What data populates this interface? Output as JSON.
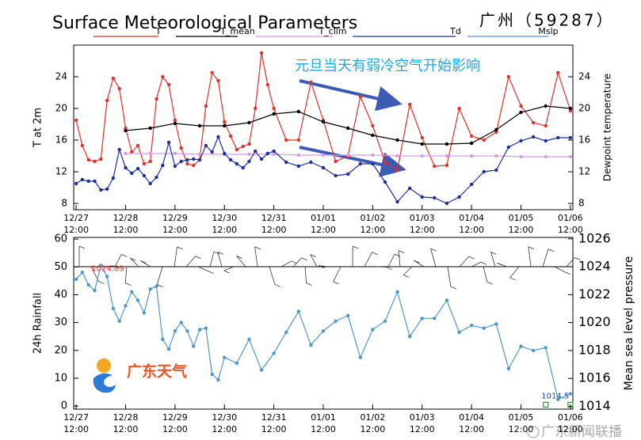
{
  "chart_data": [
    {
      "type": "line",
      "title": "Surface Meteorological Parameters",
      "subtitle": "广州（59287）",
      "ylabel": "T at 2m",
      "y2label": "Dewpoint temperature",
      "xlim": [
        -0.05,
        10.05
      ],
      "ylim": [
        7.2,
        28
      ],
      "y2lim": [
        7.2,
        28
      ],
      "yticks": [
        8,
        12,
        16,
        20,
        24
      ],
      "y2ticks": [
        8,
        12,
        16,
        20,
        24
      ],
      "xticks": [
        {
          "value": 0,
          "label": "12/27\n12:00"
        },
        {
          "value": 1,
          "label": "12/28\n12:00"
        },
        {
          "value": 2,
          "label": "12/29\n12:00"
        },
        {
          "value": 3,
          "label": "12/30\n12:00"
        },
        {
          "value": 4,
          "label": "12/31\n12:00"
        },
        {
          "value": 5,
          "label": "01/01\n12:00"
        },
        {
          "value": 6,
          "label": "01/02\n12:00"
        },
        {
          "value": 7,
          "label": "01/03\n12:00"
        },
        {
          "value": 8,
          "label": "01/04\n12:00"
        },
        {
          "value": 9,
          "label": "01/05\n12:00"
        },
        {
          "value": 10,
          "label": "01/06\n12:00"
        }
      ],
      "annotation": "元旦当天有弱冷空气开始影响",
      "series": [
        {
          "name": "T",
          "color": "#e0302a",
          "x": [
            0,
            0.125,
            0.25,
            0.375,
            0.5,
            0.625,
            0.75,
            0.875,
            1,
            1.125,
            1.25,
            1.375,
            1.5,
            1.625,
            1.75,
            1.875,
            2,
            2.125,
            2.25,
            2.375,
            2.5,
            2.625,
            2.75,
            2.875,
            3,
            3.125,
            3.25,
            3.375,
            3.5,
            3.625,
            3.75,
            3.875,
            4,
            4.25,
            4.5,
            4.75,
            5,
            5.25,
            5.5,
            5.75,
            6,
            6.25,
            6.5,
            6.75,
            7,
            7.25,
            7.5,
            7.75,
            8,
            8.25,
            8.5,
            8.75,
            9,
            9.25,
            9.5,
            9.75,
            10
          ],
          "values": [
            18.5,
            15.3,
            13.5,
            13.3,
            13.6,
            21,
            23.8,
            22.5,
            17.5,
            14.5,
            15.3,
            13,
            13.3,
            21.2,
            24,
            23,
            18.5,
            15,
            13,
            12.8,
            13.5,
            20.3,
            24.5,
            23.5,
            18.3,
            16.5,
            14.8,
            15.2,
            15.5,
            20,
            27,
            23,
            20,
            16,
            16,
            23.3,
            18.5,
            13.3,
            14,
            21.5,
            17.8,
            13.2,
            12.2,
            20.5,
            16.3,
            12.7,
            12.8,
            20,
            16.5,
            16,
            17,
            24,
            20.3,
            18.2,
            17.8,
            24.5,
            19.7
          ]
        },
        {
          "name": "T_mean",
          "color": "#000000",
          "x": [
            1,
            1.5,
            2,
            2.5,
            3,
            3.5,
            4,
            4.5,
            5,
            5.5,
            6,
            6.5,
            7,
            7.5,
            8,
            8.5,
            9,
            9.5,
            10
          ],
          "values": [
            17.2,
            17.5,
            18.1,
            17.8,
            17.8,
            18.2,
            19.3,
            19.6,
            18.3,
            17.5,
            16.6,
            16,
            15.5,
            15.5,
            15.6,
            17.3,
            19.5,
            20.3,
            20
          ]
        },
        {
          "name": "T_clim",
          "color": "#d79be0",
          "x": [
            1,
            1.5,
            2,
            2.5,
            3,
            3.5,
            4,
            4.5,
            5,
            5.5,
            6,
            6.5,
            7,
            7.5,
            8,
            8.5,
            9,
            9.5,
            10
          ],
          "values": [
            14.3,
            14.3,
            14.3,
            14.2,
            14.2,
            14.2,
            14.2,
            14.1,
            14.1,
            14.1,
            14.1,
            14,
            14,
            14,
            14,
            14,
            13.9,
            13.9,
            13.9
          ]
        },
        {
          "name": "Td",
          "color": "#1f2f9a",
          "axis": "y2",
          "x": [
            0,
            0.125,
            0.25,
            0.375,
            0.5,
            0.625,
            0.75,
            0.875,
            1,
            1.125,
            1.25,
            1.375,
            1.5,
            1.625,
            1.75,
            1.875,
            2,
            2.125,
            2.25,
            2.375,
            2.5,
            2.625,
            2.75,
            2.875,
            3,
            3.125,
            3.25,
            3.375,
            3.5,
            3.625,
            3.75,
            3.875,
            4,
            4.25,
            4.5,
            4.75,
            5,
            5.25,
            5.5,
            5.75,
            6,
            6.25,
            6.5,
            6.75,
            7,
            7.25,
            7.5,
            7.75,
            8,
            8.25,
            8.5,
            8.75,
            9,
            9.25,
            9.5,
            9.75,
            10
          ],
          "values": [
            10.5,
            11,
            10.8,
            10.8,
            9.7,
            9.8,
            11.2,
            14.8,
            12.5,
            11.8,
            12.4,
            11.5,
            10.5,
            11.3,
            12.8,
            15.7,
            12.7,
            13.3,
            13.5,
            13.6,
            13.5,
            15.3,
            14.5,
            16.4,
            14.3,
            13.5,
            13,
            12.5,
            13.3,
            14.6,
            13.6,
            14.3,
            14.6,
            13.2,
            12.7,
            13.2,
            12.5,
            11.5,
            11.7,
            13,
            13,
            10.7,
            8.2,
            9.9,
            8.8,
            8.7,
            8,
            8.8,
            10.4,
            12,
            12.2,
            15.1,
            15.9,
            16.4,
            15.9,
            16.3,
            16.3
          ]
        }
      ]
    },
    {
      "type": "line",
      "ylabel": "24h Rainfall",
      "y2label": "Mean sea level pressure",
      "xlim": [
        -0.05,
        10.05
      ],
      "ylim": [
        -1.1,
        60.6
      ],
      "y2lim": [
        1013.8,
        1026.1
      ],
      "yticks": [
        0,
        10,
        20,
        30,
        40,
        50,
        60
      ],
      "y2ticks": [
        1014,
        1016,
        1018,
        1020,
        1022,
        1024,
        1026
      ],
      "xticks": [
        {
          "value": 0,
          "label": "12/27\n12:00"
        },
        {
          "value": 1,
          "label": "12/28\n12:00"
        },
        {
          "value": 2,
          "label": "12/29\n12:00"
        },
        {
          "value": 3,
          "label": "12/30\n12:00"
        },
        {
          "value": 4,
          "label": "12/31\n12:00"
        },
        {
          "value": 5,
          "label": "01/01\n12:00"
        },
        {
          "value": 6,
          "label": "01/02\n12:00"
        },
        {
          "value": 7,
          "label": "01/03\n12:00"
        },
        {
          "value": 8,
          "label": "01/04\n12:00"
        },
        {
          "value": 9,
          "label": "01/05\n12:00"
        },
        {
          "value": 10,
          "label": "01/06\n12:00"
        }
      ],
      "series": [
        {
          "name": "Mslp",
          "color": "#4f97c9",
          "axis": "y2",
          "x": [
            0,
            0.125,
            0.25,
            0.375,
            0.5,
            0.625,
            0.75,
            0.875,
            1,
            1.125,
            1.25,
            1.375,
            1.5,
            1.625,
            1.75,
            1.875,
            2,
            2.125,
            2.25,
            2.375,
            2.5,
            2.625,
            2.75,
            2.875,
            3,
            3.25,
            3.5,
            3.75,
            4,
            4.25,
            4.5,
            4.75,
            5,
            5.25,
            5.5,
            5.75,
            6,
            6.25,
            6.5,
            6.75,
            7,
            7.25,
            7.5,
            7.75,
            8,
            8.25,
            8.5,
            8.75,
            9,
            9.25,
            9.5,
            9.75,
            10
          ],
          "values": [
            1023.1,
            1023.6,
            1022.7,
            1022.3,
            1024.09,
            1023.3,
            1021,
            1020.1,
            1021.2,
            1022.2,
            1021.6,
            1020.7,
            1022.4,
            1022.6,
            1018.8,
            1018.1,
            1019.4,
            1020,
            1019.4,
            1018.3,
            1019.5,
            1019.6,
            1016.3,
            1015.9,
            1017.5,
            1017.1,
            1018.8,
            1016.6,
            1017.8,
            1019.3,
            1020.8,
            1018.4,
            1019.4,
            1020.1,
            1020.5,
            1017.5,
            1019.5,
            1020.1,
            1022.2,
            1019,
            1020.3,
            1020.3,
            1021.6,
            1019.3,
            1019.8,
            1019.6,
            1019.9,
            1016.7,
            1018.3,
            1018,
            1018.2,
            1014.5,
            1014.9
          ],
          "max_label": "1024.09",
          "min_label": "1014.5"
        },
        {
          "type": "scatter",
          "color": "#2ca02c",
          "x": [
            9.5,
            10
          ],
          "values": [
            0.5,
            0.5
          ]
        }
      ]
    }
  ],
  "watermarks": [
    "广东天气",
    "广东新闻联播"
  ]
}
